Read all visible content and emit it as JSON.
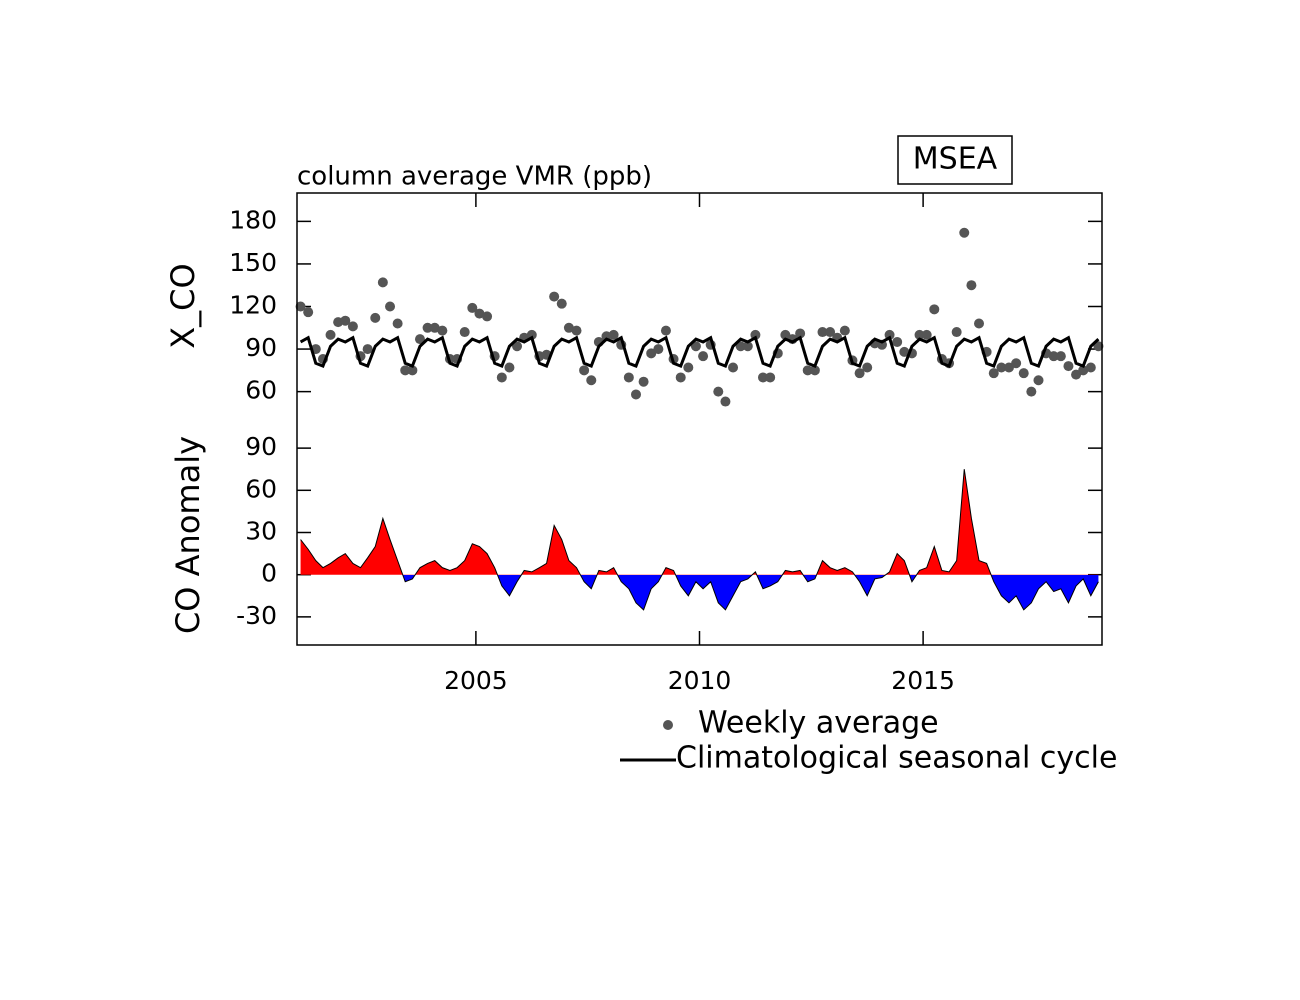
{
  "chart_data": [
    {
      "type": "scatter",
      "title": "MSEA",
      "subtitle": "column average VMR (ppb)",
      "y_label": "X_CO",
      "xlim": [
        2001,
        2019
      ],
      "ylim": [
        40,
        200
      ],
      "yticks": [
        60,
        90,
        120,
        150,
        180
      ],
      "x": [
        2001.08,
        2001.25,
        2001.42,
        2001.58,
        2001.75,
        2001.92,
        2002.08,
        2002.25,
        2002.42,
        2002.58,
        2002.75,
        2002.92,
        2003.08,
        2003.25,
        2003.42,
        2003.58,
        2003.75,
        2003.92,
        2004.08,
        2004.25,
        2004.42,
        2004.58,
        2004.75,
        2004.92,
        2005.08,
        2005.25,
        2005.42,
        2005.58,
        2005.75,
        2005.92,
        2006.08,
        2006.25,
        2006.42,
        2006.58,
        2006.75,
        2006.92,
        2007.08,
        2007.25,
        2007.42,
        2007.58,
        2007.75,
        2007.92,
        2008.08,
        2008.25,
        2008.42,
        2008.58,
        2008.75,
        2008.92,
        2009.08,
        2009.25,
        2009.42,
        2009.58,
        2009.75,
        2009.92,
        2010.08,
        2010.25,
        2010.42,
        2010.58,
        2010.75,
        2010.92,
        2011.08,
        2011.25,
        2011.42,
        2011.58,
        2011.75,
        2011.92,
        2012.08,
        2012.25,
        2012.42,
        2012.58,
        2012.75,
        2012.92,
        2013.08,
        2013.25,
        2013.42,
        2013.58,
        2013.75,
        2013.92,
        2014.08,
        2014.25,
        2014.42,
        2014.58,
        2014.75,
        2014.92,
        2015.08,
        2015.25,
        2015.42,
        2015.58,
        2015.75,
        2015.92,
        2016.08,
        2016.25,
        2016.42,
        2016.58,
        2016.75,
        2016.92,
        2017.08,
        2017.25,
        2017.42,
        2017.58,
        2017.75,
        2017.92,
        2018.08,
        2018.25,
        2018.42,
        2018.58,
        2018.75,
        2018.92
      ],
      "series": [
        {
          "name": "Weekly average",
          "type": "scatter",
          "color": "#555555",
          "values": [
            120,
            116,
            90,
            83,
            100,
            109,
            110,
            106,
            85,
            90,
            112,
            137,
            120,
            108,
            75,
            75,
            97,
            105,
            105,
            103,
            83,
            83,
            102,
            119,
            115,
            113,
            85,
            70,
            77,
            92,
            98,
            100,
            85,
            86,
            127,
            122,
            105,
            103,
            75,
            68,
            95,
            99,
            100,
            93,
            70,
            58,
            67,
            87,
            90,
            103,
            83,
            70,
            77,
            92,
            85,
            93,
            60,
            53,
            77,
            92,
            92,
            100,
            70,
            70,
            87,
            100,
            97,
            101,
            75,
            75,
            102,
            102,
            98,
            103,
            82,
            73,
            77,
            94,
            93,
            100,
            95,
            88,
            87,
            100,
            100,
            118,
            83,
            80,
            102,
            172,
            135,
            108,
            88,
            73,
            77,
            77,
            80,
            73,
            60,
            68,
            87,
            85,
            85,
            78,
            72,
            75,
            77,
            92
          ]
        },
        {
          "name": "Climatological seasonal cycle",
          "type": "line",
          "color": "#000000",
          "values": [
            95,
            98,
            80,
            78,
            92,
            97,
            95,
            98,
            80,
            78,
            92,
            97,
            95,
            98,
            80,
            78,
            92,
            97,
            95,
            98,
            80,
            78,
            92,
            97,
            95,
            98,
            80,
            78,
            92,
            97,
            95,
            98,
            80,
            78,
            92,
            97,
            95,
            98,
            80,
            78,
            92,
            97,
            95,
            98,
            80,
            78,
            92,
            97,
            95,
            98,
            80,
            78,
            92,
            97,
            95,
            98,
            80,
            78,
            92,
            97,
            95,
            98,
            80,
            78,
            92,
            97,
            95,
            98,
            80,
            78,
            92,
            97,
            95,
            98,
            80,
            78,
            92,
            97,
            95,
            98,
            80,
            78,
            92,
            97,
            95,
            98,
            80,
            78,
            92,
            97,
            95,
            98,
            80,
            78,
            92,
            97,
            95,
            98,
            80,
            78,
            92,
            97,
            95,
            98,
            80,
            78,
            92,
            97
          ]
        }
      ]
    },
    {
      "type": "area",
      "y_label": "CO Anomaly",
      "xlim": [
        2001,
        2019
      ],
      "ylim": [
        -50,
        110
      ],
      "yticks": [
        -30,
        0,
        30,
        60,
        90
      ],
      "xticks": [
        2005,
        2010,
        2015
      ],
      "positive_color": "#ff0000",
      "negative_color": "#0000ff",
      "x": [
        2001.08,
        2001.25,
        2001.42,
        2001.58,
        2001.75,
        2001.92,
        2002.08,
        2002.25,
        2002.42,
        2002.58,
        2002.75,
        2002.92,
        2003.08,
        2003.25,
        2003.42,
        2003.58,
        2003.75,
        2003.92,
        2004.08,
        2004.25,
        2004.42,
        2004.58,
        2004.75,
        2004.92,
        2005.08,
        2005.25,
        2005.42,
        2005.58,
        2005.75,
        2005.92,
        2006.08,
        2006.25,
        2006.42,
        2006.58,
        2006.75,
        2006.92,
        2007.08,
        2007.25,
        2007.42,
        2007.58,
        2007.75,
        2007.92,
        2008.08,
        2008.25,
        2008.42,
        2008.58,
        2008.75,
        2008.92,
        2009.08,
        2009.25,
        2009.42,
        2009.58,
        2009.75,
        2009.92,
        2010.08,
        2010.25,
        2010.42,
        2010.58,
        2010.75,
        2010.92,
        2011.08,
        2011.25,
        2011.42,
        2011.58,
        2011.75,
        2011.92,
        2012.08,
        2012.25,
        2012.42,
        2012.58,
        2012.75,
        2012.92,
        2013.08,
        2013.25,
        2013.42,
        2013.58,
        2013.75,
        2013.92,
        2014.08,
        2014.25,
        2014.42,
        2014.58,
        2014.75,
        2014.92,
        2015.08,
        2015.25,
        2015.42,
        2015.58,
        2015.75,
        2015.92,
        2016.08,
        2016.25,
        2016.42,
        2016.58,
        2016.75,
        2016.92,
        2017.08,
        2017.25,
        2017.42,
        2017.58,
        2017.75,
        2017.92,
        2018.08,
        2018.25,
        2018.42,
        2018.58,
        2018.75,
        2018.92
      ],
      "values": [
        25,
        18,
        10,
        5,
        8,
        12,
        15,
        8,
        5,
        12,
        20,
        40,
        25,
        10,
        -5,
        -3,
        5,
        8,
        10,
        5,
        3,
        5,
        10,
        22,
        20,
        15,
        5,
        -8,
        -15,
        -5,
        3,
        2,
        5,
        8,
        35,
        25,
        10,
        5,
        -5,
        -10,
        3,
        2,
        5,
        -5,
        -10,
        -20,
        -25,
        -10,
        -5,
        5,
        3,
        -8,
        -15,
        -5,
        -10,
        -5,
        -20,
        -25,
        -15,
        -5,
        -3,
        2,
        -10,
        -8,
        -5,
        3,
        2,
        3,
        -5,
        -3,
        10,
        5,
        3,
        5,
        2,
        -5,
        -15,
        -3,
        -2,
        2,
        15,
        10,
        -5,
        3,
        5,
        20,
        3,
        2,
        10,
        75,
        40,
        10,
        8,
        -5,
        -15,
        -20,
        -15,
        -25,
        -20,
        -10,
        -5,
        -12,
        -10,
        -20,
        -8,
        -3,
        -15,
        -5
      ]
    }
  ]
}
